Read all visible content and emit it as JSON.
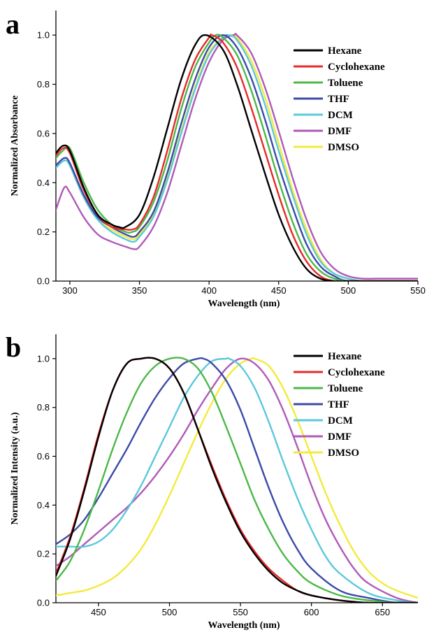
{
  "chart_data": [
    {
      "panel": "a",
      "type": "line",
      "title": "",
      "xlabel": "Wavelength (nm)",
      "ylabel": "Normalized Absorbance",
      "xlim": [
        290,
        550
      ],
      "ylim": [
        0.0,
        1.1
      ],
      "xticks": [
        300,
        350,
        400,
        450,
        500,
        550
      ],
      "yticks": [
        0.0,
        0.2,
        0.4,
        0.6,
        0.8,
        1.0
      ],
      "xtick_labels": [
        "300",
        "350",
        "400",
        "450",
        "500",
        "550"
      ],
      "ytick_labels": [
        "0.0",
        "0.2",
        "0.4",
        "0.6",
        "0.8",
        "1.0"
      ],
      "grid": false,
      "legend_position": "top-right",
      "series": [
        {
          "name": "Hexane",
          "color": "#000000",
          "x": [
            290,
            295,
            300,
            310,
            320,
            330,
            335,
            340,
            350,
            360,
            370,
            380,
            390,
            398,
            410,
            420,
            430,
            440,
            450,
            460,
            470,
            480,
            490,
            500,
            520,
            550
          ],
          "y": [
            0.52,
            0.55,
            0.53,
            0.38,
            0.27,
            0.23,
            0.22,
            0.22,
            0.27,
            0.42,
            0.62,
            0.82,
            0.96,
            1.0,
            0.94,
            0.8,
            0.62,
            0.44,
            0.27,
            0.14,
            0.05,
            0.01,
            0.0,
            0.0,
            0.0,
            0.0
          ]
        },
        {
          "name": "Cyclohexane",
          "color": "#e8292a",
          "x": [
            290,
            295,
            300,
            310,
            320,
            330,
            340,
            345,
            350,
            360,
            370,
            380,
            390,
            400,
            402,
            410,
            420,
            430,
            440,
            450,
            460,
            470,
            480,
            490,
            500,
            520,
            550
          ],
          "y": [
            0.51,
            0.54,
            0.52,
            0.37,
            0.27,
            0.22,
            0.21,
            0.21,
            0.23,
            0.34,
            0.53,
            0.74,
            0.9,
            0.99,
            1.0,
            0.97,
            0.87,
            0.71,
            0.53,
            0.35,
            0.19,
            0.08,
            0.02,
            0.0,
            0.0,
            0.0,
            0.0
          ]
        },
        {
          "name": "Toluene",
          "color": "#4cb848",
          "x": [
            290,
            295,
            300,
            310,
            320,
            330,
            340,
            345,
            350,
            360,
            370,
            380,
            390,
            400,
            405,
            410,
            420,
            430,
            440,
            450,
            460,
            470,
            480,
            490,
            500,
            520,
            550
          ],
          "y": [
            0.5,
            0.53,
            0.54,
            0.4,
            0.29,
            0.23,
            0.2,
            0.2,
            0.22,
            0.32,
            0.49,
            0.7,
            0.87,
            0.97,
            1.0,
            0.99,
            0.92,
            0.78,
            0.6,
            0.41,
            0.24,
            0.11,
            0.04,
            0.01,
            0.0,
            0.0,
            0.0
          ]
        },
        {
          "name": "THF",
          "color": "#3a4aa8",
          "x": [
            290,
            296,
            300,
            310,
            320,
            330,
            340,
            346,
            350,
            360,
            370,
            380,
            390,
            400,
            410,
            420,
            430,
            440,
            450,
            460,
            470,
            480,
            490,
            500,
            520,
            550
          ],
          "y": [
            0.47,
            0.5,
            0.48,
            0.35,
            0.26,
            0.22,
            0.19,
            0.18,
            0.2,
            0.28,
            0.44,
            0.64,
            0.82,
            0.95,
            1.0,
            0.95,
            0.83,
            0.66,
            0.47,
            0.3,
            0.15,
            0.06,
            0.02,
            0.0,
            0.0,
            0.0
          ]
        },
        {
          "name": "DCM",
          "color": "#5bc8dc",
          "x": [
            290,
            296,
            300,
            310,
            320,
            330,
            340,
            346,
            350,
            360,
            370,
            380,
            390,
            400,
            410,
            414,
            420,
            430,
            440,
            450,
            460,
            470,
            480,
            490,
            500,
            510,
            520,
            550
          ],
          "y": [
            0.46,
            0.49,
            0.47,
            0.34,
            0.25,
            0.2,
            0.17,
            0.16,
            0.18,
            0.26,
            0.41,
            0.6,
            0.78,
            0.92,
            0.99,
            1.0,
            0.98,
            0.88,
            0.72,
            0.53,
            0.35,
            0.19,
            0.08,
            0.03,
            0.01,
            0.0,
            0.0,
            0.0
          ]
        },
        {
          "name": "DMF",
          "color": "#b05ab8",
          "x": [
            290,
            296,
            300,
            310,
            320,
            330,
            340,
            346,
            350,
            360,
            370,
            380,
            390,
            400,
            410,
            418,
            420,
            430,
            440,
            450,
            460,
            470,
            480,
            490,
            500,
            510,
            520,
            530,
            550
          ],
          "y": [
            0.29,
            0.38,
            0.36,
            0.26,
            0.19,
            0.16,
            0.14,
            0.13,
            0.14,
            0.22,
            0.36,
            0.55,
            0.74,
            0.89,
            0.98,
            1.0,
            1.0,
            0.93,
            0.79,
            0.61,
            0.42,
            0.25,
            0.12,
            0.05,
            0.02,
            0.01,
            0.01,
            0.01,
            0.01
          ]
        },
        {
          "name": "DMSO",
          "color": "#f4ea3c",
          "x": [
            290,
            296,
            300,
            310,
            320,
            330,
            340,
            346,
            350,
            360,
            370,
            380,
            390,
            400,
            410,
            416,
            420,
            430,
            440,
            450,
            460,
            470,
            480,
            490,
            500,
            510,
            520,
            550
          ],
          "y": [
            0.46,
            0.49,
            0.47,
            0.34,
            0.25,
            0.21,
            0.18,
            0.17,
            0.19,
            0.27,
            0.42,
            0.61,
            0.79,
            0.93,
            0.99,
            1.0,
            0.99,
            0.9,
            0.75,
            0.56,
            0.37,
            0.21,
            0.09,
            0.03,
            0.01,
            0.0,
            0.0,
            0.0
          ]
        }
      ]
    },
    {
      "panel": "b",
      "type": "line",
      "title": "",
      "xlabel": "Wavelength (nm)",
      "ylabel": "Normalized Intensity (a.u.)",
      "xlim": [
        420,
        675
      ],
      "ylim": [
        0.0,
        1.1
      ],
      "xticks": [
        450,
        500,
        550,
        600,
        650
      ],
      "yticks": [
        0.0,
        0.2,
        0.4,
        0.6,
        0.8,
        1.0
      ],
      "xtick_labels": [
        "450",
        "500",
        "550",
        "600",
        "650"
      ],
      "ytick_labels": [
        "0.0",
        "0.2",
        "0.4",
        "0.6",
        "0.8",
        "1.0"
      ],
      "grid": false,
      "legend_position": "top-right",
      "series": [
        {
          "name": "Hexane",
          "color": "#000000",
          "x": [
            420,
            430,
            440,
            450,
            460,
            470,
            480,
            490,
            500,
            510,
            520,
            530,
            540,
            550,
            560,
            570,
            580,
            590,
            600,
            620,
            640,
            660,
            675
          ],
          "y": [
            0.11,
            0.26,
            0.46,
            0.68,
            0.87,
            0.98,
            1.0,
            1.0,
            0.96,
            0.86,
            0.71,
            0.55,
            0.41,
            0.29,
            0.2,
            0.13,
            0.08,
            0.05,
            0.03,
            0.01,
            0.0,
            0.0,
            0.0
          ]
        },
        {
          "name": "Cyclohexane",
          "color": "#e8292a",
          "x": [
            420,
            430,
            440,
            450,
            460,
            470,
            480,
            490,
            500,
            510,
            520,
            530,
            540,
            550,
            560,
            570,
            580,
            590,
            600,
            620,
            640,
            660,
            675
          ],
          "y": [
            0.12,
            0.27,
            0.47,
            0.69,
            0.87,
            0.98,
            1.0,
            1.0,
            0.96,
            0.86,
            0.71,
            0.56,
            0.42,
            0.3,
            0.21,
            0.14,
            0.09,
            0.05,
            0.03,
            0.01,
            0.0,
            0.0,
            0.0
          ]
        },
        {
          "name": "Toluene",
          "color": "#4cb848",
          "x": [
            420,
            430,
            440,
            450,
            460,
            470,
            480,
            490,
            500,
            510,
            520,
            530,
            540,
            550,
            560,
            570,
            580,
            590,
            600,
            620,
            640,
            660,
            675
          ],
          "y": [
            0.09,
            0.17,
            0.3,
            0.46,
            0.63,
            0.78,
            0.9,
            0.97,
            1.0,
            1.0,
            0.96,
            0.86,
            0.72,
            0.57,
            0.42,
            0.3,
            0.2,
            0.13,
            0.08,
            0.03,
            0.01,
            0.0,
            0.0
          ]
        },
        {
          "name": "THF",
          "color": "#3a4aa8",
          "x": [
            420,
            430,
            440,
            450,
            460,
            470,
            480,
            490,
            500,
            510,
            520,
            524,
            530,
            540,
            550,
            560,
            570,
            580,
            590,
            600,
            620,
            640,
            660,
            675
          ],
          "y": [
            0.24,
            0.28,
            0.34,
            0.43,
            0.53,
            0.63,
            0.74,
            0.84,
            0.92,
            0.98,
            1.0,
            1.0,
            0.98,
            0.91,
            0.79,
            0.63,
            0.47,
            0.33,
            0.22,
            0.14,
            0.05,
            0.02,
            0.0,
            0.0
          ]
        },
        {
          "name": "DCM",
          "color": "#5bc8dc",
          "x": [
            420,
            430,
            440,
            450,
            460,
            470,
            480,
            490,
            500,
            510,
            520,
            530,
            540,
            542,
            550,
            560,
            570,
            580,
            590,
            600,
            610,
            620,
            640,
            660,
            675
          ],
          "y": [
            0.23,
            0.23,
            0.23,
            0.25,
            0.3,
            0.38,
            0.48,
            0.6,
            0.72,
            0.84,
            0.93,
            0.99,
            1.0,
            1.0,
            0.97,
            0.88,
            0.74,
            0.58,
            0.43,
            0.3,
            0.19,
            0.12,
            0.04,
            0.01,
            0.0
          ]
        },
        {
          "name": "DMF",
          "color": "#b05ab8",
          "x": [
            420,
            430,
            440,
            450,
            460,
            470,
            480,
            490,
            500,
            510,
            520,
            530,
            540,
            550,
            560,
            570,
            580,
            590,
            600,
            610,
            620,
            630,
            640,
            660,
            675
          ],
          "y": [
            0.15,
            0.19,
            0.24,
            0.29,
            0.34,
            0.39,
            0.45,
            0.52,
            0.6,
            0.69,
            0.79,
            0.88,
            0.96,
            1.0,
            0.98,
            0.91,
            0.79,
            0.64,
            0.48,
            0.34,
            0.23,
            0.14,
            0.08,
            0.02,
            0.0
          ]
        },
        {
          "name": "DMSO",
          "color": "#f4ea3c",
          "x": [
            420,
            430,
            440,
            450,
            460,
            470,
            480,
            490,
            500,
            510,
            520,
            530,
            540,
            550,
            558,
            560,
            570,
            580,
            590,
            600,
            610,
            620,
            630,
            640,
            650,
            660,
            675
          ],
          "y": [
            0.03,
            0.04,
            0.05,
            0.07,
            0.1,
            0.15,
            0.22,
            0.32,
            0.44,
            0.57,
            0.7,
            0.82,
            0.92,
            0.98,
            1.0,
            1.0,
            0.97,
            0.88,
            0.75,
            0.6,
            0.45,
            0.32,
            0.21,
            0.13,
            0.08,
            0.05,
            0.02
          ]
        }
      ]
    }
  ]
}
